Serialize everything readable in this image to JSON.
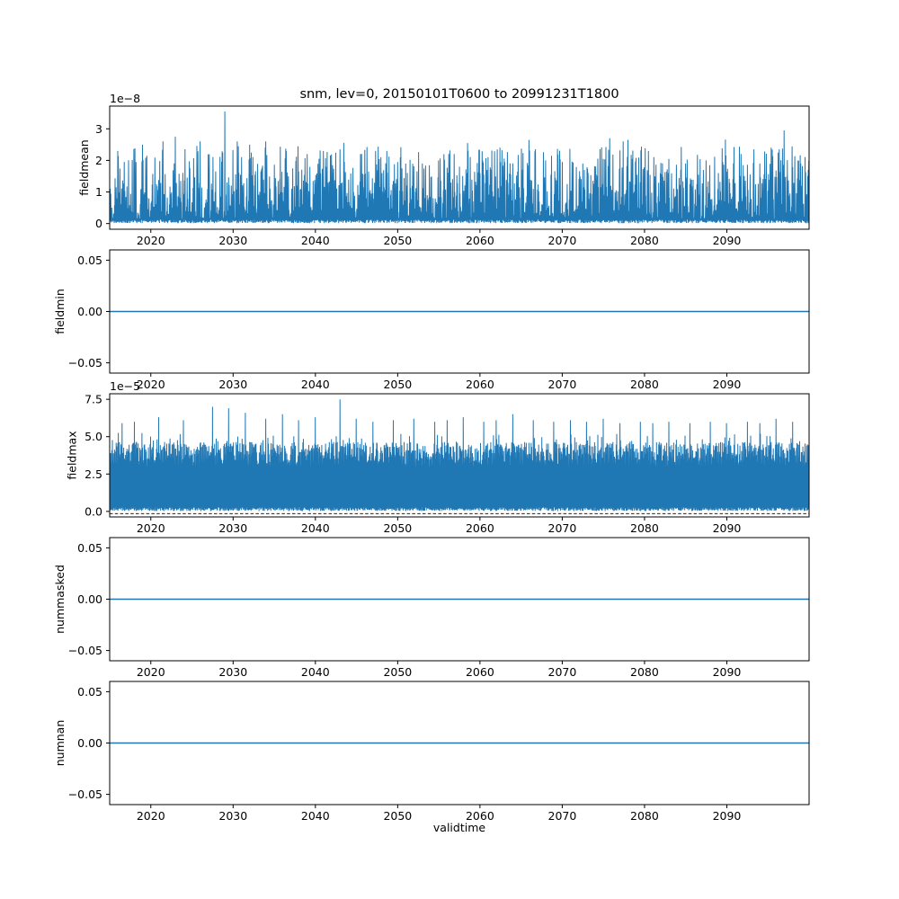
{
  "figure": {
    "title": "snm, lev=0, 20150101T0600 to 20991231T1800",
    "xlabel": "validtime",
    "background_color": "#ffffff",
    "line_color": "#1f77b4",
    "axis_color": "#000000",
    "x_range": [
      2015,
      2100
    ],
    "x_ticks": [
      2020,
      2030,
      2040,
      2050,
      2060,
      2070,
      2080,
      2090
    ],
    "x_tick_labels": [
      "2020",
      "2030",
      "2040",
      "2050",
      "2060",
      "2070",
      "2080",
      "2090"
    ]
  },
  "chart_data": [
    {
      "name": "fieldmean",
      "type": "line",
      "ylabel": "fieldmean",
      "scale_label": "1e−8",
      "scale_factor": 1e-08,
      "ylim": [
        -0.18,
        3.72
      ],
      "yticks": [
        0,
        1,
        2,
        3
      ],
      "ytick_labels": [
        "0",
        "1",
        "2",
        "3"
      ],
      "grid": false,
      "series": {
        "kind": "spiky_strokes",
        "description": "Dense noisy spikes from 0 baseline, mass below 1e-8, frequent peaks 2-2.7e-8, maximum 3.55e-8 near 2029",
        "seed": 101,
        "n": 2600,
        "base": 0.15,
        "amp": 2.3,
        "power": 2.0,
        "spike_prob": 0.05,
        "spike_amp": 0.6,
        "cap": 3.0,
        "low_base": 0.01,
        "low_amp": 0.12,
        "peaks": [
          [
            2016,
            2.3
          ],
          [
            2019,
            2.5
          ],
          [
            2021.5,
            2.6
          ],
          [
            2023,
            2.75
          ],
          [
            2026,
            2.6
          ],
          [
            2029,
            3.55
          ],
          [
            2030.5,
            2.6
          ],
          [
            2032,
            2.5
          ],
          [
            2034,
            2.6
          ],
          [
            2036.5,
            2.3
          ],
          [
            2039,
            2.2
          ],
          [
            2041,
            2.3
          ],
          [
            2043,
            2.35
          ],
          [
            2045.5,
            2.2
          ],
          [
            2048,
            2.1
          ],
          [
            2050,
            1.95
          ],
          [
            2053,
            1.9
          ],
          [
            2055,
            2.0
          ],
          [
            2058.5,
            2.55
          ],
          [
            2061,
            2.1
          ],
          [
            2063,
            1.95
          ],
          [
            2066,
            2.65
          ],
          [
            2068,
            2.0
          ],
          [
            2070,
            1.95
          ],
          [
            2072.5,
            1.9
          ],
          [
            2075,
            2.05
          ],
          [
            2078,
            2.65
          ],
          [
            2080.5,
            2.3
          ],
          [
            2083,
            2.05
          ],
          [
            2085,
            1.9
          ],
          [
            2087.5,
            2.0
          ],
          [
            2089.5,
            1.95
          ],
          [
            2092,
            1.85
          ],
          [
            2094,
            1.9
          ],
          [
            2097,
            2.95
          ],
          [
            2099,
            1.9
          ]
        ]
      }
    },
    {
      "name": "fieldmin",
      "type": "line",
      "ylabel": "fieldmin",
      "scale_label": "",
      "ylim": [
        -0.06,
        0.06
      ],
      "yticks": [
        0.05,
        0,
        -0.05
      ],
      "ytick_labels": [
        "0.05",
        "0.00",
        "−0.05"
      ],
      "grid": false,
      "series": {
        "kind": "constant",
        "value": 0,
        "description": "Flat line at exactly 0 for entire time range"
      }
    },
    {
      "name": "fieldmax",
      "type": "line",
      "ylabel": "fieldmax",
      "scale_label": "1e−5",
      "scale_factor": 1e-05,
      "ylim": [
        -0.37,
        7.87
      ],
      "yticks": [
        0,
        2.5,
        5,
        7.5
      ],
      "ytick_labels": [
        "0.0",
        "2.5",
        "5.0",
        "7.5"
      ],
      "grid": false,
      "zero_dashed": true,
      "zero_dashed_y": -0.15,
      "series": {
        "kind": "spiky_strokes",
        "description": "Dense noisy spikes from 0 baseline, mass 3-5e-5, frequent peaks ~6e-5, maximum 7.5e-5 near 2043; dashed black reference line at 0",
        "seed": 202,
        "n": 2600,
        "base": 3.0,
        "amp": 1.65,
        "power": 0.85,
        "spike_prob": 0.14,
        "spike_amp": 0.9,
        "cap": 6.1,
        "low_base": 0.02,
        "low_amp": 0.25,
        "peaks": [
          [
            2016.5,
            5.9
          ],
          [
            2018,
            6.0
          ],
          [
            2021,
            6.3
          ],
          [
            2024,
            6.1
          ],
          [
            2027.5,
            7.0
          ],
          [
            2029.5,
            6.9
          ],
          [
            2031.5,
            6.6
          ],
          [
            2034,
            6.2
          ],
          [
            2036,
            6.5
          ],
          [
            2038,
            6.1
          ],
          [
            2040,
            6.3
          ],
          [
            2043,
            7.5
          ],
          [
            2045,
            6.2
          ],
          [
            2047,
            6.0
          ],
          [
            2049.5,
            6.1
          ],
          [
            2052,
            6.2
          ],
          [
            2054.5,
            6.0
          ],
          [
            2056,
            6.1
          ],
          [
            2058,
            6.3
          ],
          [
            2060.5,
            6.0
          ],
          [
            2062,
            6.1
          ],
          [
            2064,
            6.5
          ],
          [
            2066.5,
            6.1
          ],
          [
            2069,
            6.0
          ],
          [
            2071,
            6.1
          ],
          [
            2073,
            6.0
          ],
          [
            2075,
            6.2
          ],
          [
            2077,
            5.9
          ],
          [
            2079.5,
            6.0
          ],
          [
            2081,
            5.9
          ],
          [
            2083,
            6.0
          ],
          [
            2085.5,
            5.9
          ],
          [
            2088,
            6.0
          ],
          [
            2090,
            5.9
          ],
          [
            2092.5,
            6.0
          ],
          [
            2094,
            5.9
          ],
          [
            2096,
            6.2
          ],
          [
            2098,
            6.0
          ]
        ]
      }
    },
    {
      "name": "nummasked",
      "type": "line",
      "ylabel": "nummasked",
      "scale_label": "",
      "ylim": [
        -0.06,
        0.06
      ],
      "yticks": [
        0.05,
        0,
        -0.05
      ],
      "ytick_labels": [
        "0.05",
        "0.00",
        "−0.05"
      ],
      "grid": false,
      "series": {
        "kind": "constant",
        "value": 0,
        "description": "Flat line at exactly 0 for entire time range"
      }
    },
    {
      "name": "numnan",
      "type": "line",
      "ylabel": "numnan",
      "scale_label": "",
      "ylim": [
        -0.06,
        0.06
      ],
      "yticks": [
        0.05,
        0,
        -0.05
      ],
      "ytick_labels": [
        "0.05",
        "0.00",
        "−0.05"
      ],
      "grid": false,
      "series": {
        "kind": "constant",
        "value": 0,
        "description": "Flat line at exactly 0 for entire time range"
      }
    }
  ]
}
